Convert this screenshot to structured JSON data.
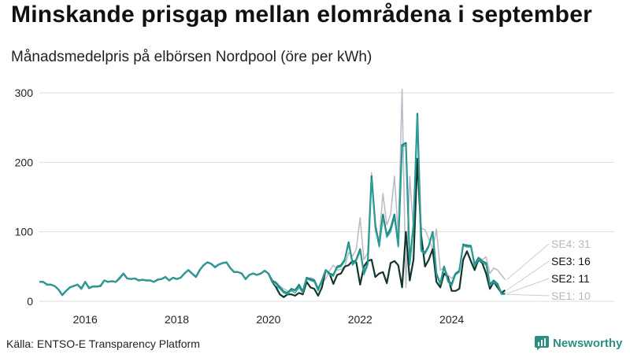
{
  "header": {
    "title": "Minskande prisgap mellan elområdena i  september",
    "subtitle": "Månadsmedelpris på elbörsen Nordpool (öre per kWh)"
  },
  "footer": {
    "source": "Källa: ENTSO-E Transparency Platform",
    "brand": "Newsworthy"
  },
  "colors": {
    "SE1": "#2f9fa0",
    "SE2": "#1a8a78",
    "SE3": "#12352c",
    "SE4": "#bdbdc9",
    "grid": "#dddddd",
    "brand": "#2a8f80"
  },
  "chart_data": {
    "type": "line",
    "title": "Minskande prisgap mellan elområdena i  september",
    "subtitle": "Månadsmedelpris på elbörsen Nordpool (öre per kWh)",
    "xlabel": "",
    "ylabel": "",
    "xlim": [
      2015.0,
      2026.0
    ],
    "ylim": [
      0,
      300
    ],
    "grid": true,
    "y_ticks": [
      0,
      100,
      200,
      300
    ],
    "x_ticks": [
      2016,
      2018,
      2020,
      2022,
      2024
    ],
    "x_start": 2015.0,
    "x_step": 0.08333,
    "end_labels": [
      "SE4: 31",
      "SE3: 16",
      "SE2: 11",
      "SE1: 10"
    ],
    "series": [
      {
        "name": "SE4",
        "values": [
          28,
          28,
          24,
          24,
          22,
          17,
          10,
          15,
          20,
          22,
          24,
          20,
          28,
          20,
          22,
          22,
          23,
          30,
          28,
          29,
          28,
          35,
          40,
          33,
          32,
          33,
          30,
          31,
          30,
          30,
          28,
          32,
          32,
          35,
          30,
          34,
          32,
          34,
          40,
          45,
          40,
          36,
          45,
          52,
          56,
          54,
          50,
          53,
          55,
          56,
          48,
          42,
          42,
          40,
          32,
          38,
          40,
          38,
          40,
          44,
          40,
          30,
          28,
          22,
          18,
          15,
          14,
          16,
          22,
          14,
          30,
          34,
          32,
          20,
          28,
          32,
          44,
          52,
          45,
          46,
          50,
          70,
          65,
          75,
          120,
          60,
          70,
          185,
          100,
          90,
          155,
          110,
          125,
          180,
          95,
          305,
          20,
          180,
          100,
          270,
          105,
          103,
          90,
          75,
          104,
          45,
          48,
          38,
          33,
          40,
          44,
          80,
          82,
          78,
          55,
          64,
          60,
          64,
          40,
          48,
          45,
          38,
          31
        ]
      },
      {
        "name": "SE3",
        "values": [
          28,
          28,
          24,
          24,
          22,
          17,
          9,
          15,
          20,
          22,
          24,
          18,
          28,
          19,
          21,
          21,
          22,
          30,
          28,
          29,
          28,
          33,
          40,
          33,
          32,
          33,
          30,
          31,
          30,
          30,
          28,
          31,
          32,
          35,
          30,
          34,
          32,
          34,
          40,
          45,
          40,
          35,
          45,
          52,
          56,
          54,
          49,
          53,
          55,
          56,
          48,
          42,
          42,
          40,
          32,
          38,
          40,
          38,
          40,
          44,
          40,
          28,
          20,
          10,
          6,
          10,
          10,
          8,
          12,
          10,
          28,
          20,
          18,
          8,
          20,
          45,
          40,
          25,
          38,
          40,
          50,
          52,
          58,
          56,
          24,
          50,
          58,
          60,
          35,
          40,
          42,
          26,
          55,
          58,
          52,
          20,
          100,
          30,
          60,
          205,
          95,
          50,
          60,
          75,
          28,
          20,
          40,
          35,
          15,
          15,
          18,
          60,
          72,
          58,
          45,
          60,
          55,
          40,
          18,
          28,
          20,
          12,
          16
        ]
      },
      {
        "name": "SE2",
        "values": [
          28,
          28,
          24,
          24,
          22,
          17,
          9,
          15,
          20,
          22,
          24,
          18,
          28,
          19,
          21,
          21,
          22,
          30,
          28,
          29,
          28,
          33,
          40,
          33,
          32,
          33,
          30,
          31,
          30,
          30,
          28,
          31,
          32,
          35,
          30,
          34,
          32,
          34,
          40,
          45,
          40,
          35,
          45,
          52,
          56,
          54,
          49,
          53,
          55,
          56,
          48,
          42,
          42,
          40,
          32,
          38,
          40,
          38,
          40,
          44,
          40,
          30,
          26,
          20,
          14,
          12,
          18,
          16,
          24,
          14,
          34,
          32,
          30,
          17,
          30,
          45,
          40,
          38,
          50,
          52,
          60,
          85,
          55,
          60,
          75,
          40,
          55,
          180,
          110,
          80,
          125,
          95,
          105,
          125,
          80,
          225,
          228,
          55,
          110,
          270,
          75,
          70,
          80,
          100,
          40,
          25,
          50,
          30,
          25,
          40,
          44,
          82,
          80,
          80,
          52,
          62,
          58,
          55,
          24,
          30,
          25,
          12,
          11
        ]
      },
      {
        "name": "SE1",
        "values": [
          28,
          28,
          24,
          24,
          22,
          17,
          9,
          15,
          20,
          22,
          24,
          18,
          28,
          19,
          21,
          21,
          22,
          30,
          28,
          29,
          28,
          33,
          40,
          33,
          32,
          33,
          30,
          31,
          30,
          30,
          28,
          31,
          32,
          35,
          30,
          34,
          32,
          34,
          40,
          45,
          40,
          35,
          45,
          52,
          56,
          54,
          49,
          53,
          55,
          56,
          48,
          42,
          42,
          40,
          32,
          38,
          40,
          38,
          40,
          44,
          40,
          28,
          22,
          18,
          12,
          10,
          16,
          12,
          20,
          12,
          32,
          30,
          28,
          15,
          28,
          44,
          38,
          36,
          48,
          50,
          58,
          82,
          52,
          58,
          72,
          38,
          52,
          175,
          105,
          78,
          120,
          92,
          100,
          120,
          78,
          222,
          225,
          52,
          105,
          266,
          72,
          68,
          78,
          98,
          38,
          24,
          48,
          28,
          22,
          38,
          42,
          80,
          78,
          78,
          50,
          60,
          56,
          52,
          22,
          28,
          23,
          10,
          10
        ]
      }
    ]
  }
}
